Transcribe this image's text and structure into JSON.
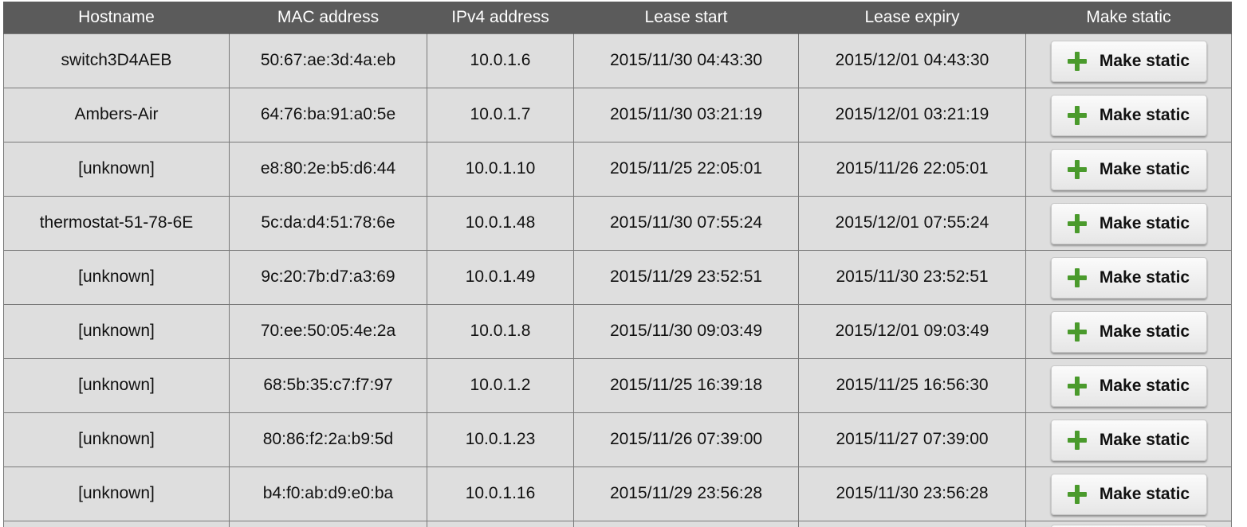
{
  "table": {
    "headers": {
      "hostname": "Hostname",
      "mac": "MAC address",
      "ipv4": "IPv4 address",
      "lease_start": "Lease start",
      "lease_expiry": "Lease expiry",
      "make_static": "Make static"
    },
    "rows": [
      {
        "hostname": "switch3D4AEB",
        "mac": "50:67:ae:3d:4a:eb",
        "ipv4": "10.0.1.6",
        "lease_start": "2015/11/30 04:43:30",
        "lease_expiry": "2015/12/01 04:43:30",
        "action": "Make static"
      },
      {
        "hostname": "Ambers-Air",
        "mac": "64:76:ba:91:a0:5e",
        "ipv4": "10.0.1.7",
        "lease_start": "2015/11/30 03:21:19",
        "lease_expiry": "2015/12/01 03:21:19",
        "action": "Make static"
      },
      {
        "hostname": "[unknown]",
        "mac": "e8:80:2e:b5:d6:44",
        "ipv4": "10.0.1.10",
        "lease_start": "2015/11/25 22:05:01",
        "lease_expiry": "2015/11/26 22:05:01",
        "action": "Make static"
      },
      {
        "hostname": "thermostat-51-78-6E",
        "mac": "5c:da:d4:51:78:6e",
        "ipv4": "10.0.1.48",
        "lease_start": "2015/11/30 07:55:24",
        "lease_expiry": "2015/12/01 07:55:24",
        "action": "Make static"
      },
      {
        "hostname": "[unknown]",
        "mac": "9c:20:7b:d7:a3:69",
        "ipv4": "10.0.1.49",
        "lease_start": "2015/11/29 23:52:51",
        "lease_expiry": "2015/11/30 23:52:51",
        "action": "Make static"
      },
      {
        "hostname": "[unknown]",
        "mac": "70:ee:50:05:4e:2a",
        "ipv4": "10.0.1.8",
        "lease_start": "2015/11/30 09:03:49",
        "lease_expiry": "2015/12/01 09:03:49",
        "action": "Make static"
      },
      {
        "hostname": "[unknown]",
        "mac": "68:5b:35:c7:f7:97",
        "ipv4": "10.0.1.2",
        "lease_start": "2015/11/25 16:39:18",
        "lease_expiry": "2015/11/25 16:56:30",
        "action": "Make static"
      },
      {
        "hostname": "[unknown]",
        "mac": "80:86:f2:2a:b9:5d",
        "ipv4": "10.0.1.23",
        "lease_start": "2015/11/26 07:39:00",
        "lease_expiry": "2015/11/27 07:39:00",
        "action": "Make static"
      },
      {
        "hostname": "[unknown]",
        "mac": "b4:f0:ab:d9:e0:ba",
        "ipv4": "10.0.1.16",
        "lease_start": "2015/11/29 23:56:28",
        "lease_expiry": "2015/11/30 23:56:28",
        "action": "Make static"
      }
    ]
  },
  "icons": {
    "make_static": "plus-icon"
  },
  "colors": {
    "header_bg": "#5b5b5b",
    "row_bg": "#dedede",
    "plus_icon": "#4a9a2c"
  }
}
